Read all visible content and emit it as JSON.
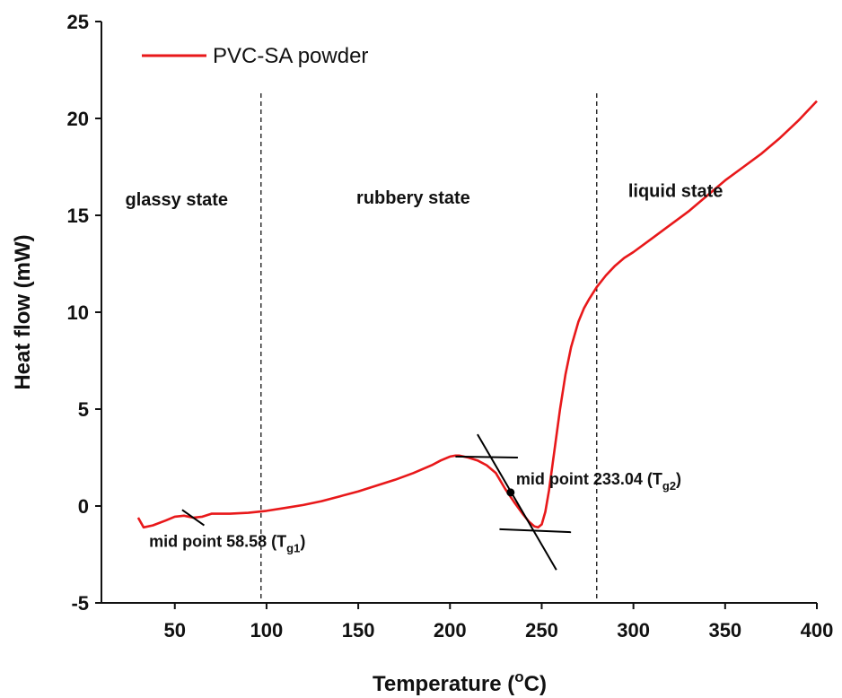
{
  "chart_data": {
    "type": "line",
    "title": "",
    "xlabel": "Temperature",
    "xlabel_unit_sup": "o",
    "xlabel_unit": "C",
    "ylabel": "Heat flow (mW)",
    "xlim": [
      10,
      400
    ],
    "ylim": [
      -5,
      25
    ],
    "x_ticks": [
      50,
      100,
      150,
      200,
      250,
      300,
      350,
      400
    ],
    "y_ticks": [
      -5,
      0,
      5,
      10,
      15,
      20,
      25
    ],
    "grid": false,
    "legend_position": "top-left",
    "series": [
      {
        "name": "PVC-SA powder",
        "color": "#e8181a",
        "x": [
          30,
          33,
          38,
          45,
          50,
          55,
          60,
          65,
          70,
          75,
          80,
          90,
          100,
          110,
          120,
          130,
          140,
          150,
          160,
          170,
          180,
          190,
          195,
          200,
          203,
          205,
          210,
          215,
          220,
          225,
          230,
          235,
          240,
          243,
          246,
          248,
          250,
          252,
          254,
          256,
          258,
          260,
          263,
          266,
          270,
          273,
          276,
          280,
          285,
          290,
          295,
          300,
          310,
          320,
          330,
          340,
          350,
          360,
          370,
          380,
          390,
          400
        ],
        "y": [
          -0.6,
          -1.1,
          -1.0,
          -0.75,
          -0.55,
          -0.5,
          -0.6,
          -0.55,
          -0.4,
          -0.4,
          -0.4,
          -0.35,
          -0.25,
          -0.1,
          0.05,
          0.25,
          0.5,
          0.75,
          1.05,
          1.35,
          1.7,
          2.1,
          2.35,
          2.55,
          2.6,
          2.6,
          2.5,
          2.35,
          2.1,
          1.7,
          0.9,
          0.2,
          -0.45,
          -0.8,
          -1.05,
          -1.1,
          -0.95,
          -0.3,
          0.8,
          2.2,
          3.6,
          5.0,
          6.8,
          8.2,
          9.5,
          10.2,
          10.7,
          11.3,
          11.9,
          12.4,
          12.8,
          13.1,
          13.8,
          14.5,
          15.2,
          16.0,
          16.8,
          17.5,
          18.2,
          19.0,
          19.9,
          20.9
        ]
      }
    ],
    "vertical_lines": [
      {
        "x": 97,
        "style": "dashed"
      },
      {
        "x": 280,
        "style": "dashed"
      }
    ],
    "region_labels": [
      {
        "text": "glassy state",
        "x": 51,
        "y": 15.5
      },
      {
        "text": "rubbery state",
        "x": 180,
        "y": 15.6
      },
      {
        "text": "liquid state",
        "x": 323,
        "y": 15.95
      }
    ],
    "annotations": [
      {
        "text": "mid point 58.58 (T",
        "sub": "g1",
        "close": ")",
        "x": 36,
        "y": -2.1
      },
      {
        "text": "mid point 233.04 (T",
        "sub": "g2",
        "close": ")",
        "x": 236,
        "y": 1.1
      }
    ],
    "midpoint_marker": {
      "x": 233.04,
      "y": 0.7
    },
    "tangent_lines": [
      {
        "x1": 54,
        "y1": -0.2,
        "x2": 66,
        "y2": -1.0
      },
      {
        "x1": 203,
        "y1": 2.55,
        "x2": 237,
        "y2": 2.5
      },
      {
        "x1": 215,
        "y1": 3.7,
        "x2": 258,
        "y2": -3.3
      },
      {
        "x1": 227,
        "y1": -1.2,
        "x2": 266,
        "y2": -1.35
      }
    ]
  }
}
